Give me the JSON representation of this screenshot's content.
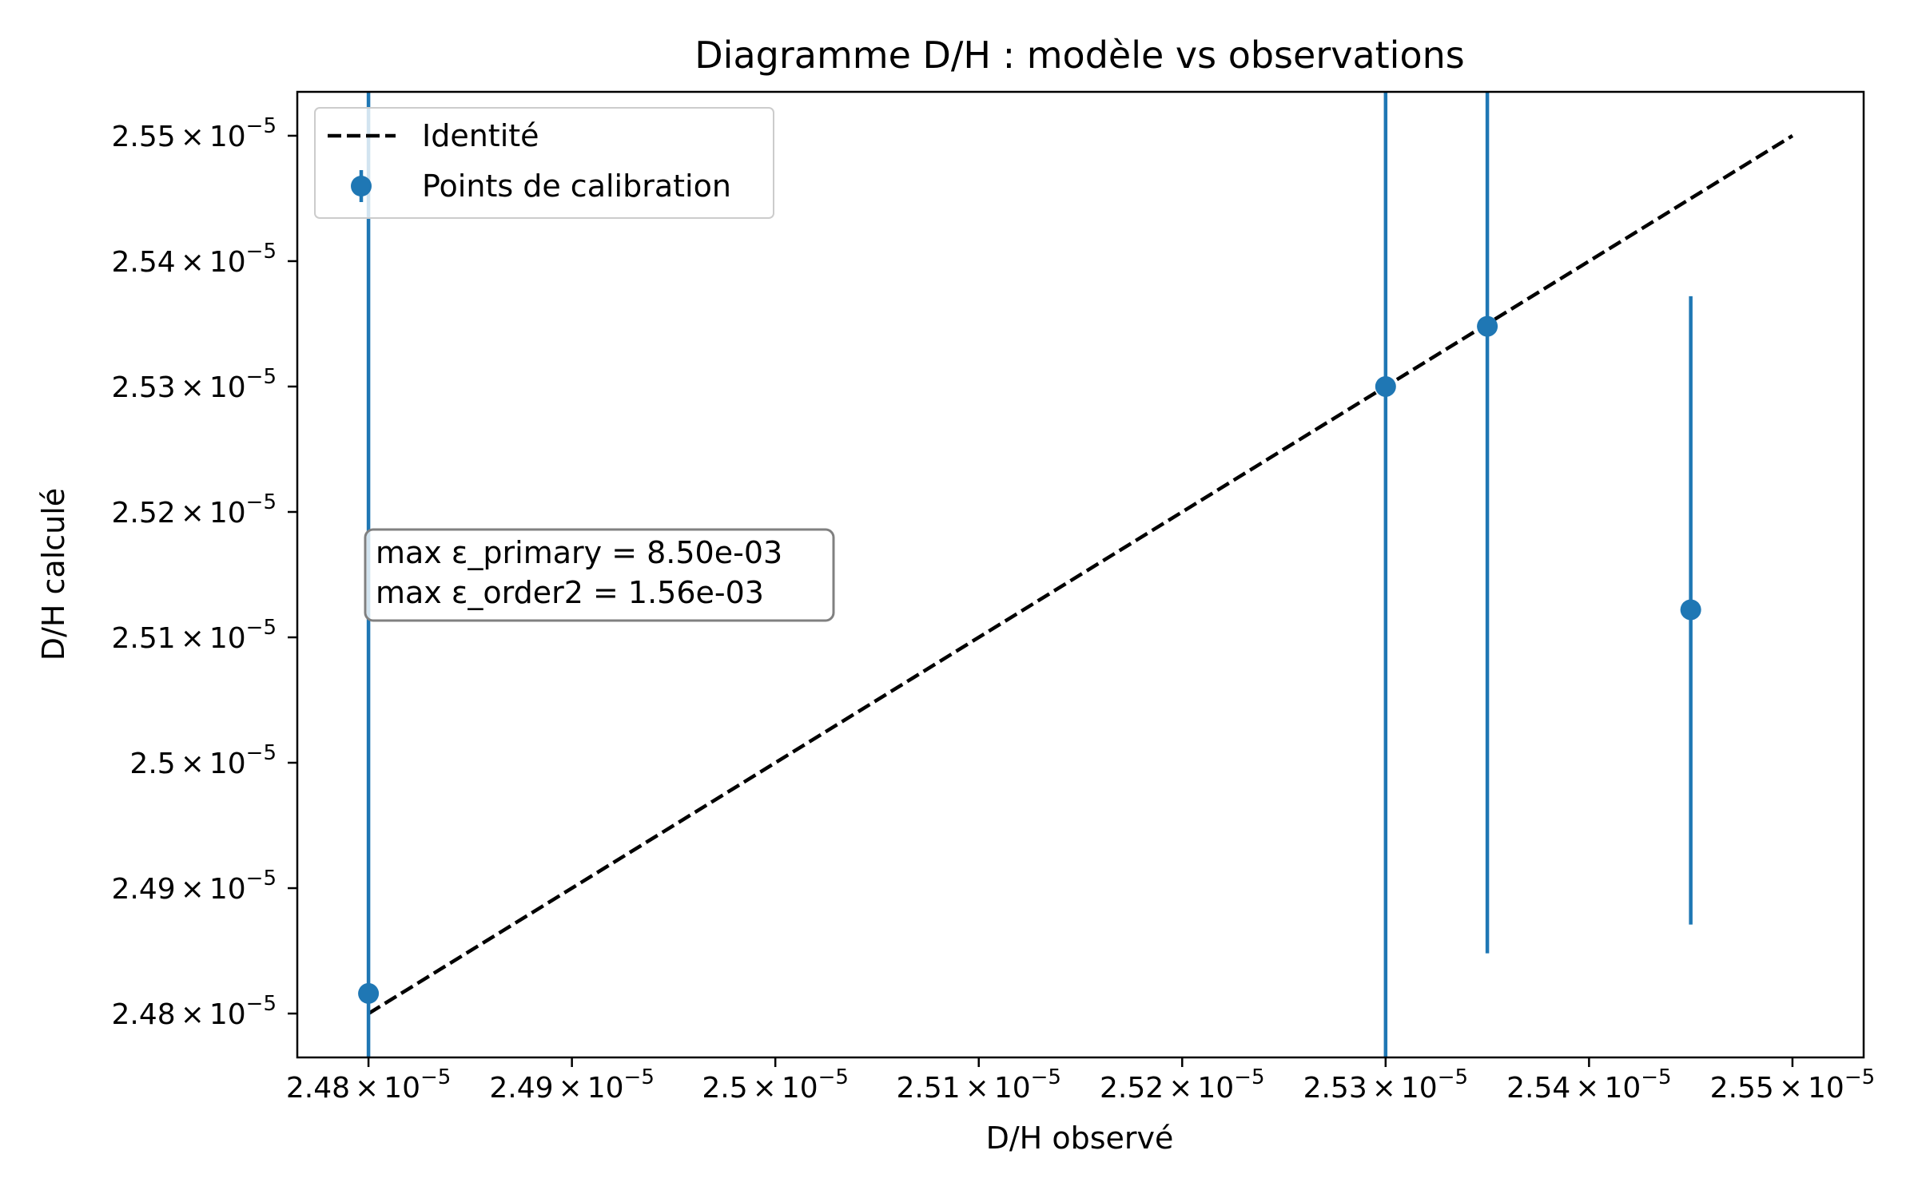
{
  "chart_data": {
    "type": "scatter",
    "title": "Diagramme D/H : modèle vs observations",
    "xlabel": "D/H observé",
    "ylabel": "D/H calculé",
    "x_ticks": [
      "2.48",
      "2.49",
      "2.5",
      "2.51",
      "2.52",
      "2.53",
      "2.54",
      "2.55"
    ],
    "y_ticks": [
      "2.48",
      "2.49",
      "2.5",
      "2.51",
      "2.52",
      "2.53",
      "2.54",
      "2.55"
    ],
    "tick_multiplier": "10",
    "tick_exponent": "−5",
    "xlim": [
      2.4765e-05,
      2.5535e-05
    ],
    "ylim": [
      2.4765e-05,
      2.5535e-05
    ],
    "grid": false,
    "legend_position": "top-left",
    "legend": {
      "identity_label": "Identité",
      "points_label": "Points de calibration"
    },
    "identity_line": {
      "x": [
        2.48e-05,
        2.55e-05
      ],
      "y": [
        2.48e-05,
        2.55e-05
      ],
      "style": "dashed",
      "color": "#000000"
    },
    "series": [
      {
        "name": "Points de calibration",
        "color": "#1f77b4",
        "points": [
          {
            "x": 2.48e-05,
            "y": 2.4816e-05,
            "yerr_low": 2.4765e-05,
            "yerr_high": 2.5535e-05
          },
          {
            "x": 2.53e-05,
            "y": 2.53e-05,
            "yerr_low": 2.4765e-05,
            "yerr_high": 2.5535e-05
          },
          {
            "x": 2.535e-05,
            "y": 2.5348e-05,
            "yerr_low": 2.4848e-05,
            "yerr_high": 2.5535e-05
          },
          {
            "x": 2.545e-05,
            "y": 2.5122e-05,
            "yerr_low": 2.4871e-05,
            "yerr_high": 2.5372e-05
          }
        ]
      }
    ],
    "annotation": {
      "line1": "max ε_primary = 8.50e-03",
      "line2": "max ε_order2 = 1.56e-03"
    }
  }
}
